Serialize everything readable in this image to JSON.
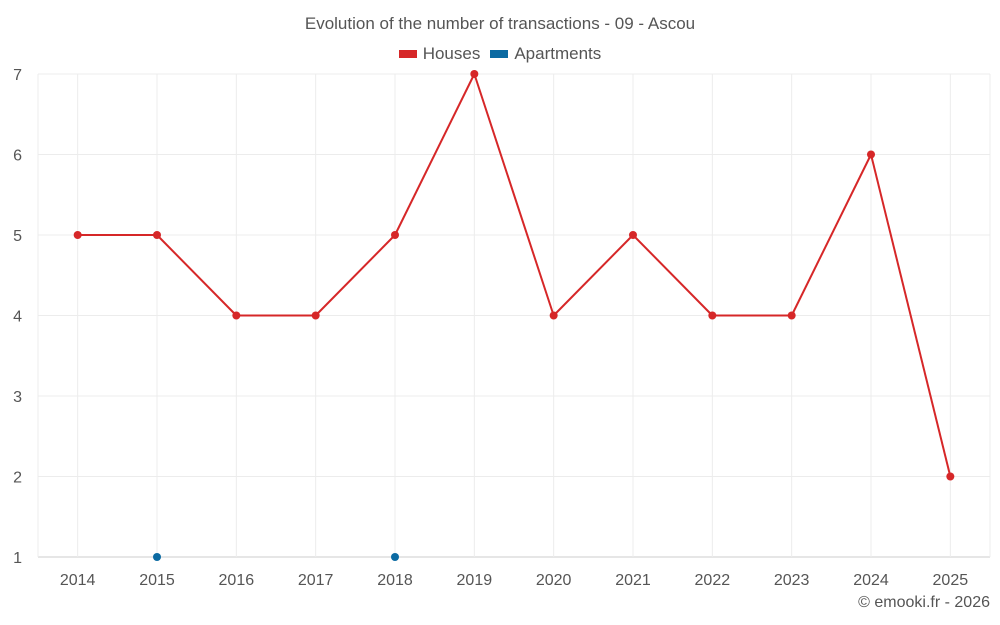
{
  "chart_data": {
    "type": "line",
    "title": "Evolution of the number of transactions - 09 - Ascou",
    "x": [
      2014,
      2015,
      2016,
      2017,
      2018,
      2019,
      2020,
      2021,
      2022,
      2023,
      2024,
      2025
    ],
    "series": [
      {
        "name": "Houses",
        "color": "#d62728",
        "values": [
          5,
          5,
          4,
          4,
          5,
          7,
          4,
          5,
          4,
          4,
          6,
          2
        ]
      },
      {
        "name": "Apartments",
        "color": "#0b6aa2",
        "values": [
          null,
          1,
          null,
          null,
          1,
          null,
          null,
          null,
          null,
          null,
          null,
          null
        ]
      }
    ],
    "ylim": [
      1,
      7
    ],
    "yticks": [
      1,
      2,
      3,
      4,
      5,
      6,
      7
    ],
    "grid": true,
    "legend": "top-center"
  },
  "credit": "© emooki.fr - 2026"
}
